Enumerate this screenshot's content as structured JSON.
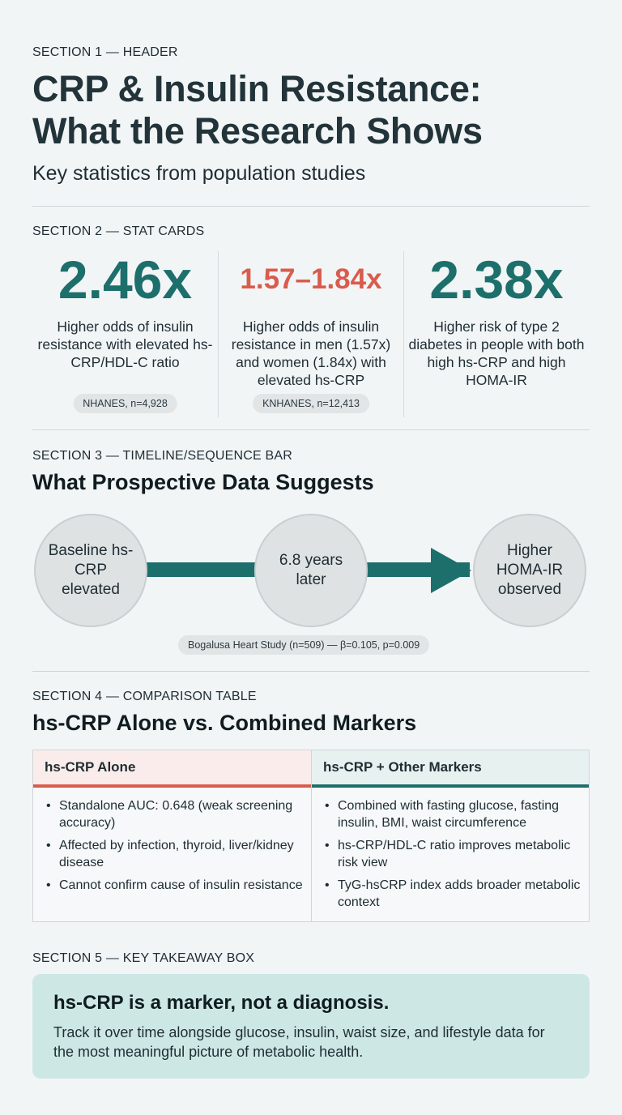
{
  "sections": {
    "s1": "SECTION 1 — HEADER",
    "s2": "SECTION 2 — STAT CARDS",
    "s3": "SECTION 3 — TIMELINE/SEQUENCE BAR",
    "s4": "SECTION 4 — COMPARISON TABLE",
    "s5": "SECTION 5 — KEY TAKEAWAY BOX"
  },
  "header": {
    "title_line1": "CRP & Insulin Resistance:",
    "title_line2": "What the Research Shows",
    "subtitle": "Key statistics from population studies"
  },
  "stats": [
    {
      "value": "2.46x",
      "color": "#1d6f6b",
      "desc": "Higher odds of insulin resistance with elevated hs-CRP/HDL-C ratio",
      "source": "NHANES, n=4,928"
    },
    {
      "value": "1.57–1.84x",
      "color": "#d95c4c",
      "desc": "Higher odds of insulin resistance in men (1.57x) and women (1.84x) with elevated hs-CRP",
      "source": "KNHANES, n=12,413"
    },
    {
      "value": "2.38x",
      "color": "#1d6f6b",
      "desc": "Higher risk of type 2 diabetes in people with both high hs-CRP and high HOMA-IR",
      "source": ""
    }
  ],
  "timeline": {
    "heading": "What Prospective Data Suggests",
    "steps": [
      "Baseline hs-CRP elevated",
      "6.8 years later",
      "Higher HOMA-IR observed"
    ],
    "source": "Bogalusa Heart Study (n=509) — β=0.105, p=0.009"
  },
  "comparison": {
    "heading": "hs-CRP Alone vs. Combined Markers",
    "left": {
      "title": "hs-CRP Alone",
      "items": [
        "Standalone AUC: 0.648 (weak screening accuracy)",
        "Affected by infection, thyroid, liver/kidney disease",
        "Cannot confirm cause of insulin resistance"
      ]
    },
    "right": {
      "title": "hs-CRP + Other Markers",
      "items": [
        "Combined with fasting glucose, fasting insulin, BMI, waist circumference",
        "hs-CRP/HDL-C ratio improves metabolic risk view",
        "TyG-hsCRP index adds broader metabolic context"
      ]
    }
  },
  "takeaway": {
    "heading": "hs-CRP is a marker, not a diagnosis.",
    "body": "Track it over time alongside glucose, insulin, waist size, and lifestyle data for the most meaningful picture of metabolic health."
  }
}
